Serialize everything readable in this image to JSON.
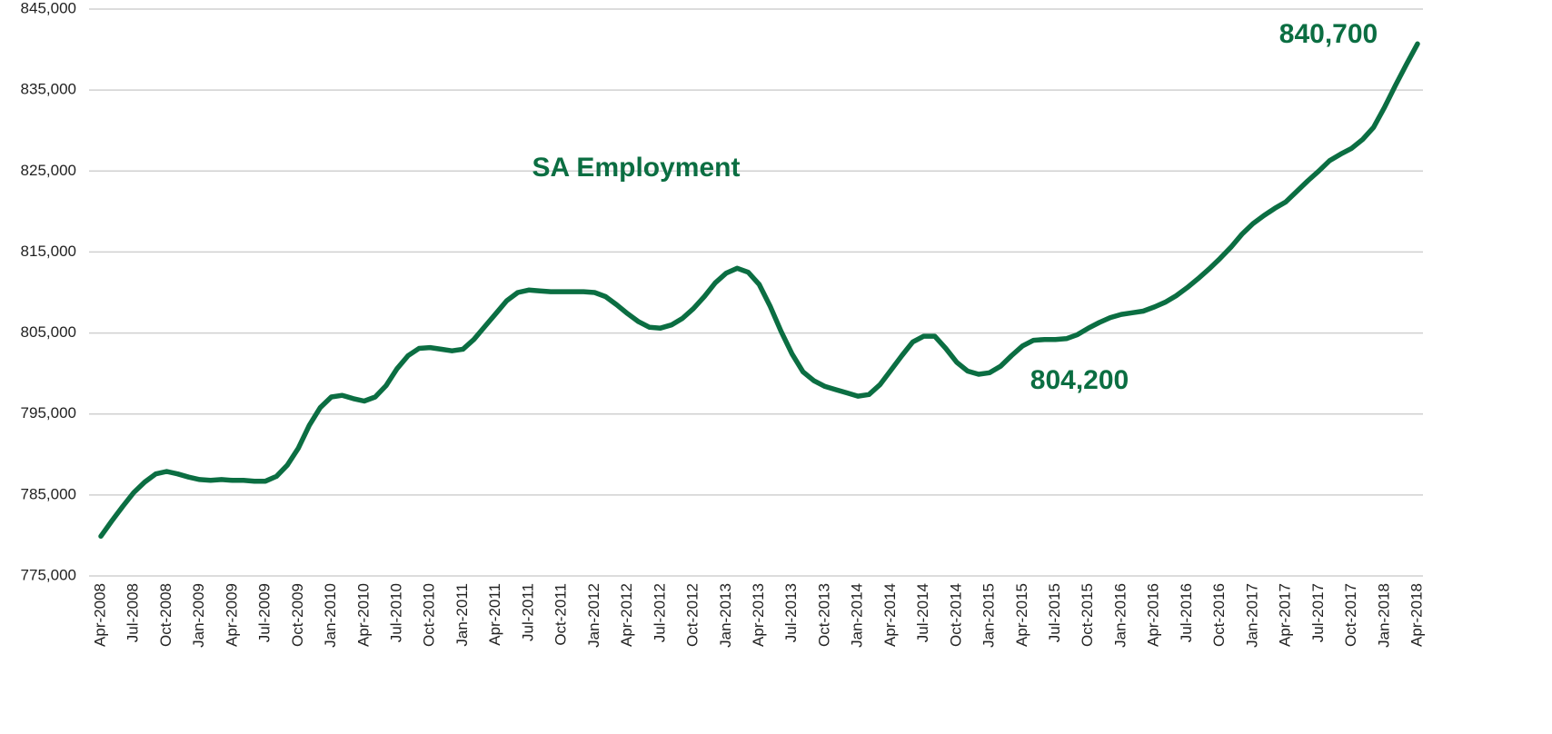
{
  "chart_data": {
    "type": "line",
    "annotations": [
      "SA Employment",
      "840,700",
      "804,200"
    ],
    "categories": [
      "Apr-2008",
      null,
      null,
      "Jul-2008",
      null,
      null,
      "Oct-2008",
      null,
      null,
      "Jan-2009",
      null,
      null,
      "Apr-2009",
      null,
      null,
      "Jul-2009",
      null,
      null,
      "Oct-2009",
      null,
      null,
      "Jan-2010",
      null,
      null,
      "Apr-2010",
      null,
      null,
      "Jul-2010",
      null,
      null,
      "Oct-2010",
      null,
      null,
      "Jan-2011",
      null,
      null,
      "Apr-2011",
      null,
      null,
      "Jul-2011",
      null,
      null,
      "Oct-2011",
      null,
      null,
      "Jan-2012",
      null,
      null,
      "Apr-2012",
      null,
      null,
      "Jul-2012",
      null,
      null,
      "Oct-2012",
      null,
      null,
      "Jan-2013",
      null,
      null,
      "Apr-2013",
      null,
      null,
      "Jul-2013",
      null,
      null,
      "Oct-2013",
      null,
      null,
      "Jan-2014",
      null,
      null,
      "Apr-2014",
      null,
      null,
      "Jul-2014",
      null,
      null,
      "Oct-2014",
      null,
      null,
      "Jan-2015",
      null,
      null,
      "Apr-2015",
      null,
      null,
      "Jul-2015",
      null,
      null,
      "Oct-2015",
      null,
      null,
      "Jan-2016",
      null,
      null,
      "Apr-2016",
      null,
      null,
      "Jul-2016",
      null,
      null,
      "Oct-2016",
      null,
      null,
      "Jan-2017",
      null,
      null,
      "Apr-2017",
      null,
      null,
      "Jul-2017",
      null,
      null,
      "Oct-2017",
      null,
      null,
      "Jan-2018",
      null,
      null,
      "Apr-2018"
    ],
    "series": [
      {
        "name": "SA Employment",
        "color": "#0b6e42",
        "values": [
          779900,
          781800,
          783600,
          785300,
          786600,
          787600,
          787900,
          787600,
          787200,
          786900,
          786800,
          786900,
          786800,
          786800,
          786700,
          786700,
          787300,
          788700,
          790800,
          793600,
          795800,
          797100,
          797300,
          796900,
          796600,
          797100,
          798500,
          800600,
          802200,
          803100,
          803200,
          803000,
          802800,
          803000,
          804200,
          805800,
          807400,
          809000,
          810000,
          810300,
          810200,
          810100,
          810100,
          810100,
          810100,
          810000,
          809500,
          808500,
          807400,
          806400,
          805700,
          805600,
          806000,
          806800,
          808000,
          809500,
          811200,
          812400,
          813000,
          812500,
          811000,
          808300,
          805200,
          802400,
          800200,
          799100,
          798400,
          798000,
          797600,
          797200,
          797400,
          798600,
          800400,
          802200,
          803900,
          804600,
          804600,
          803100,
          801400,
          800300,
          799900,
          800100,
          800900,
          802200,
          803400,
          804100,
          804200,
          804200,
          804300,
          804800,
          805600,
          806300,
          806900,
          807300,
          807500,
          807700,
          808200,
          808800,
          809600,
          810600,
          811700,
          812900,
          814200,
          815600,
          817200,
          818500,
          819500,
          820400,
          821200,
          822500,
          823800,
          825000,
          826300,
          827100,
          827800,
          828900,
          830400,
          832900,
          835600,
          838200,
          840700
        ]
      }
    ],
    "ylim": [
      775000,
      845000
    ],
    "yticks": [
      {
        "value": 775000,
        "label": "775,000"
      },
      {
        "value": 785000,
        "label": "785,000"
      },
      {
        "value": 795000,
        "label": "795,000"
      },
      {
        "value": 805000,
        "label": "805,000"
      },
      {
        "value": 815000,
        "label": "815,000"
      },
      {
        "value": 825000,
        "label": "825,000"
      },
      {
        "value": 835000,
        "label": "835,000"
      },
      {
        "value": 845000,
        "label": "845,000"
      }
    ],
    "grid": true
  }
}
